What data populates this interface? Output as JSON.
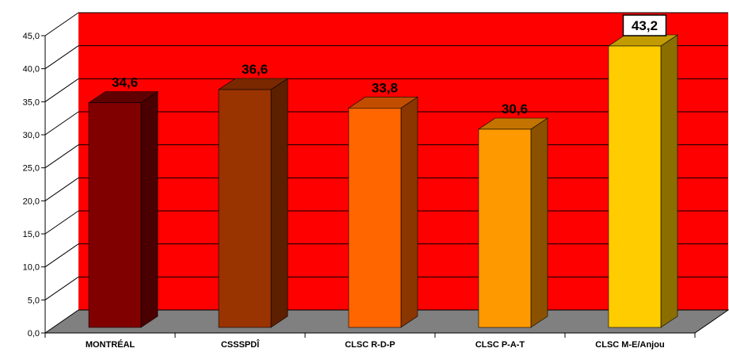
{
  "chart_data": {
    "type": "bar",
    "categories": [
      "MONTRÉAL",
      "CSSSPDÎ",
      "CLSC R-D-P",
      "CLSC P-A-T",
      "CLSC M-E/Anjou"
    ],
    "values": [
      34.6,
      36.6,
      33.8,
      30.6,
      43.2
    ],
    "value_labels": [
      "34,6",
      "36,6",
      "33,8",
      "30,6",
      "43,2"
    ],
    "yticks": [
      "0,0",
      "5,0",
      "10,0",
      "15,0",
      "20,0",
      "25,0",
      "30,0",
      "35,0",
      "40,0",
      "45,0"
    ],
    "ylim": [
      0,
      45
    ],
    "title": "",
    "xlabel": "",
    "ylabel": "",
    "grid": true,
    "legend": "none",
    "highlighted_label_index": 4,
    "colors": {
      "wall": "#ff0000",
      "floor": "#808080",
      "bars": [
        {
          "front": "#800000",
          "side": "#4a0000",
          "top": "#600000"
        },
        {
          "front": "#993300",
          "side": "#5c1f00",
          "top": "#7a2800"
        },
        {
          "front": "#ff6600",
          "side": "#8a3600",
          "top": "#c24d00"
        },
        {
          "front": "#ff9900",
          "side": "#8a5200",
          "top": "#c27300"
        },
        {
          "front": "#ffcc00",
          "side": "#8a6e00",
          "top": "#c29b00"
        }
      ]
    }
  }
}
